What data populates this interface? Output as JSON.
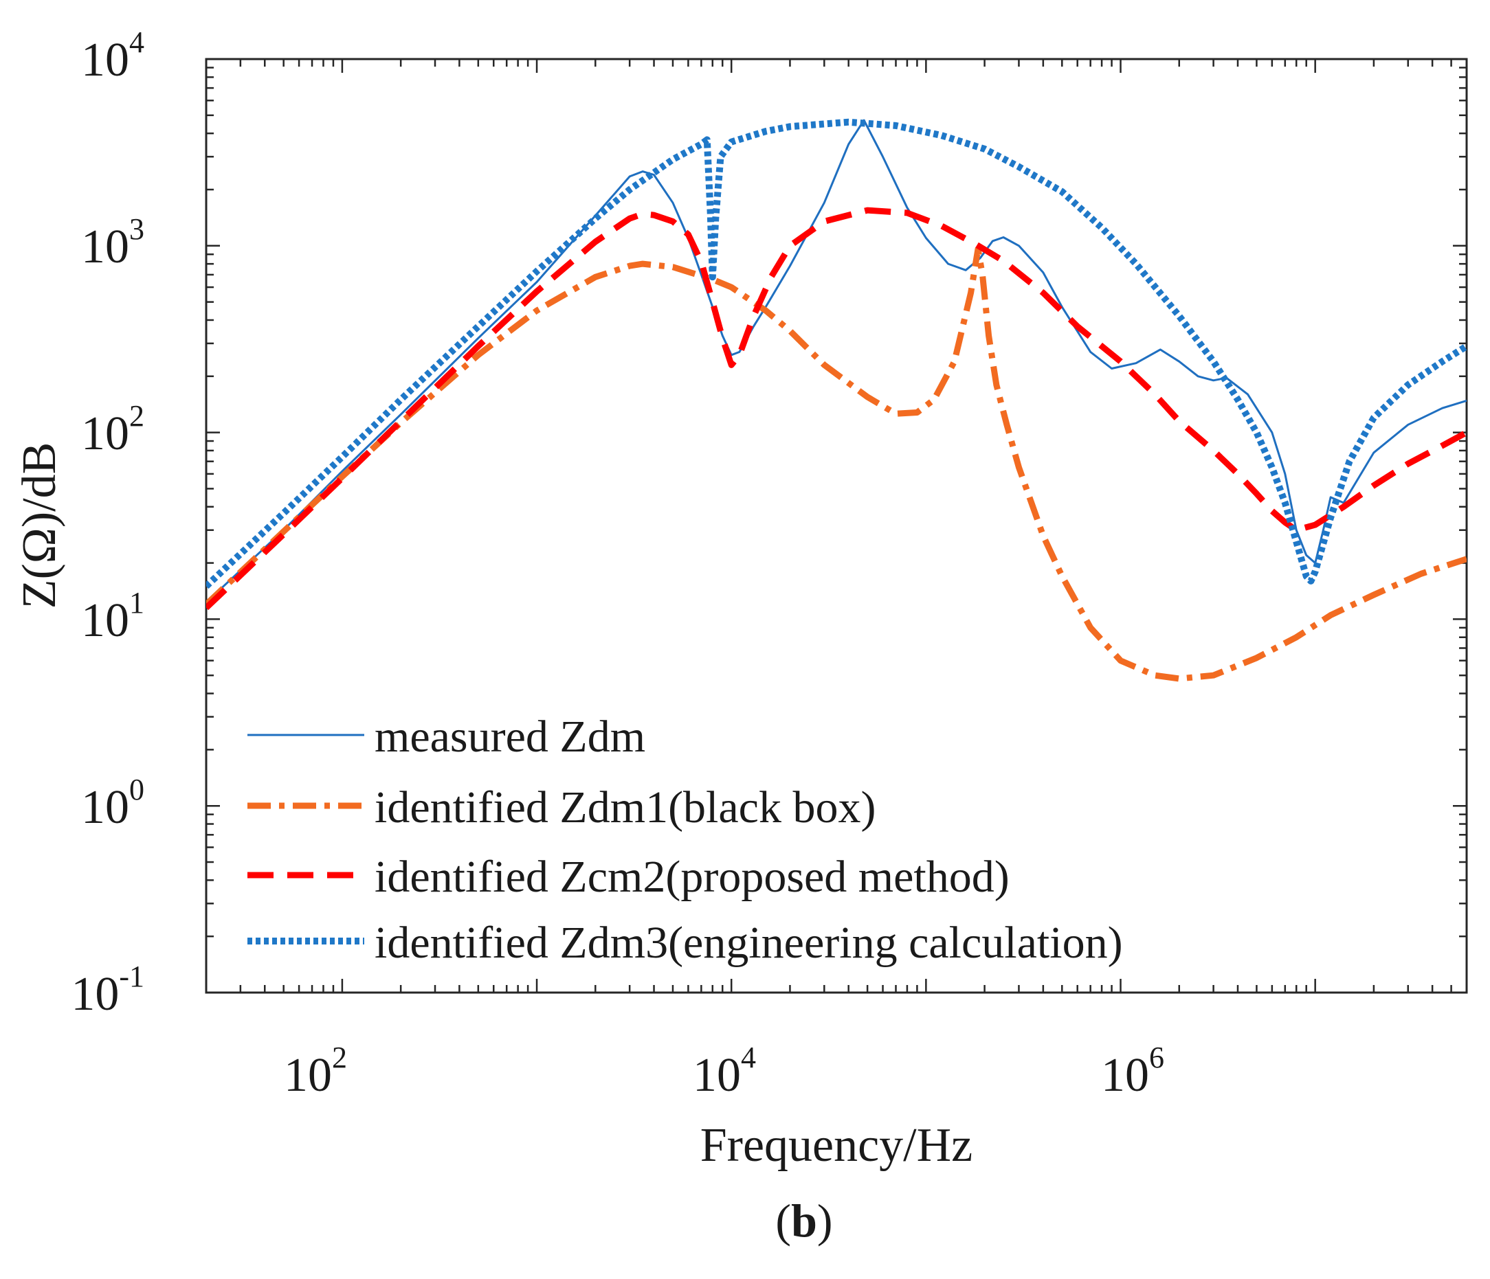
{
  "chart_data": {
    "type": "line",
    "scale": {
      "x": "log",
      "y": "log"
    },
    "xlim": [
      20,
      60000000
    ],
    "ylim": [
      0.1,
      10000
    ],
    "xlabel": "Frequency/Hz",
    "ylabel": "Z(Ω)/dB",
    "x_ticks": [
      {
        "value": 100,
        "base": "10",
        "exp": "2"
      },
      {
        "value": 10000,
        "base": "10",
        "exp": "4"
      },
      {
        "value": 1000000,
        "base": "10",
        "exp": "6"
      }
    ],
    "y_ticks": [
      {
        "value": 0.1,
        "base": "10",
        "exp": "-1"
      },
      {
        "value": 1,
        "base": "10",
        "exp": "0"
      },
      {
        "value": 10,
        "base": "10",
        "exp": "1"
      },
      {
        "value": 100,
        "base": "10",
        "exp": "2"
      },
      {
        "value": 1000,
        "base": "10",
        "exp": "3"
      },
      {
        "value": 10000,
        "base": "10",
        "exp": "4"
      }
    ],
    "legend_position": "bottom-left",
    "series": [
      {
        "name": "measured Zdm",
        "color": "#1f6fc0",
        "style": "solid",
        "points": [
          [
            20,
            12.3
          ],
          [
            50,
            30
          ],
          [
            100,
            62
          ],
          [
            200,
            125
          ],
          [
            500,
            320
          ],
          [
            1000,
            640
          ],
          [
            2000,
            1450
          ],
          [
            3000,
            2350
          ],
          [
            3500,
            2500
          ],
          [
            4000,
            2400
          ],
          [
            5000,
            1700
          ],
          [
            6000,
            1100
          ],
          [
            7000,
            700
          ],
          [
            8000,
            470
          ],
          [
            9000,
            330
          ],
          [
            10000,
            260
          ],
          [
            11000,
            270
          ],
          [
            13000,
            370
          ],
          [
            15000,
            470
          ],
          [
            20000,
            780
          ],
          [
            30000,
            1700
          ],
          [
            40000,
            3500
          ],
          [
            48000,
            4700
          ],
          [
            60000,
            3000
          ],
          [
            80000,
            1600
          ],
          [
            100000,
            1100
          ],
          [
            130000,
            800
          ],
          [
            160000,
            740
          ],
          [
            190000,
            860
          ],
          [
            220000,
            1060
          ],
          [
            250000,
            1110
          ],
          [
            300000,
            1000
          ],
          [
            400000,
            720
          ],
          [
            500000,
            470
          ],
          [
            700000,
            270
          ],
          [
            900000,
            220
          ],
          [
            1200000,
            235
          ],
          [
            1600000,
            278
          ],
          [
            2000000,
            240
          ],
          [
            2500000,
            200
          ],
          [
            3000000,
            190
          ],
          [
            3500000,
            196
          ],
          [
            4500000,
            160
          ],
          [
            6000000,
            100
          ],
          [
            7000000,
            60
          ],
          [
            8000000,
            30
          ],
          [
            9000000,
            22
          ],
          [
            10000000,
            20
          ],
          [
            11000000,
            30
          ],
          [
            12000000,
            45
          ],
          [
            14000000,
            42
          ],
          [
            20000000,
            78
          ],
          [
            30000000,
            110
          ],
          [
            45000000,
            135
          ],
          [
            60000000,
            148
          ]
        ]
      },
      {
        "name": "identified Zdm1(black box)",
        "color": "#f26b21",
        "style": "dashdot",
        "points": [
          [
            20,
            12
          ],
          [
            50,
            29.5
          ],
          [
            100,
            58
          ],
          [
            200,
            113
          ],
          [
            500,
            260
          ],
          [
            1000,
            450
          ],
          [
            2000,
            680
          ],
          [
            3000,
            780
          ],
          [
            3500,
            800
          ],
          [
            5000,
            770
          ],
          [
            8000,
            660
          ],
          [
            10000,
            600
          ],
          [
            15000,
            450
          ],
          [
            20000,
            350
          ],
          [
            30000,
            230
          ],
          [
            50000,
            155
          ],
          [
            70000,
            126
          ],
          [
            90000,
            128
          ],
          [
            110000,
            150
          ],
          [
            140000,
            240
          ],
          [
            170000,
            560
          ],
          [
            185000,
            960
          ],
          [
            195000,
            700
          ],
          [
            210000,
            330
          ],
          [
            230000,
            180
          ],
          [
            260000,
            110
          ],
          [
            300000,
            65
          ],
          [
            400000,
            28
          ],
          [
            500000,
            17
          ],
          [
            700000,
            9
          ],
          [
            1000000,
            6
          ],
          [
            1500000,
            5
          ],
          [
            2000000,
            4.8
          ],
          [
            3000000,
            5
          ],
          [
            5000000,
            6.2
          ],
          [
            8000000,
            8
          ],
          [
            12000000,
            10.5
          ],
          [
            20000000,
            13.5
          ],
          [
            35000000,
            17.5
          ],
          [
            60000000,
            21
          ]
        ]
      },
      {
        "name": "identified Zcm2(proposed method)",
        "color": "#ff0000",
        "style": "dashed",
        "points": [
          [
            20,
            11.5
          ],
          [
            50,
            28.5
          ],
          [
            100,
            57
          ],
          [
            200,
            115
          ],
          [
            500,
            290
          ],
          [
            1000,
            570
          ],
          [
            2000,
            1050
          ],
          [
            3000,
            1400
          ],
          [
            3500,
            1480
          ],
          [
            4000,
            1460
          ],
          [
            5000,
            1350
          ],
          [
            6000,
            1150
          ],
          [
            7000,
            820
          ],
          [
            8000,
            500
          ],
          [
            9000,
            320
          ],
          [
            10000,
            230
          ],
          [
            11000,
            260
          ],
          [
            13000,
            420
          ],
          [
            16000,
            680
          ],
          [
            20000,
            1000
          ],
          [
            30000,
            1350
          ],
          [
            50000,
            1550
          ],
          [
            80000,
            1500
          ],
          [
            120000,
            1280
          ],
          [
            180000,
            1020
          ],
          [
            250000,
            830
          ],
          [
            400000,
            560
          ],
          [
            600000,
            370
          ],
          [
            1000000,
            240
          ],
          [
            1500000,
            160
          ],
          [
            2000000,
            115
          ],
          [
            3000000,
            80
          ],
          [
            4000000,
            60
          ],
          [
            5000000,
            47
          ],
          [
            6000000,
            38
          ],
          [
            7000000,
            33
          ],
          [
            8000000,
            30
          ],
          [
            10000000,
            32
          ],
          [
            14000000,
            40
          ],
          [
            20000000,
            52
          ],
          [
            30000000,
            68
          ],
          [
            45000000,
            85
          ],
          [
            60000000,
            100
          ]
        ]
      },
      {
        "name": "identified Zdm3(engineering calculation)",
        "color": "#1f78c8",
        "style": "dotted",
        "points": [
          [
            20,
            15
          ],
          [
            50,
            37
          ],
          [
            100,
            74
          ],
          [
            200,
            150
          ],
          [
            500,
            370
          ],
          [
            1000,
            730
          ],
          [
            2000,
            1400
          ],
          [
            3000,
            2000
          ],
          [
            5000,
            2900
          ],
          [
            7000,
            3500
          ],
          [
            7500,
            3700
          ],
          [
            7800,
            1500
          ],
          [
            8000,
            680
          ],
          [
            8300,
            1400
          ],
          [
            8800,
            3000
          ],
          [
            10000,
            3600
          ],
          [
            15000,
            4100
          ],
          [
            20000,
            4350
          ],
          [
            40000,
            4600
          ],
          [
            70000,
            4400
          ],
          [
            120000,
            3900
          ],
          [
            200000,
            3300
          ],
          [
            300000,
            2650
          ],
          [
            500000,
            1950
          ],
          [
            800000,
            1250
          ],
          [
            1200000,
            800
          ],
          [
            2000000,
            420
          ],
          [
            3000000,
            240
          ],
          [
            4000000,
            150
          ],
          [
            5000000,
            100
          ],
          [
            6000000,
            65
          ],
          [
            7000000,
            42
          ],
          [
            8000000,
            26
          ],
          [
            9000000,
            17
          ],
          [
            9500000,
            16
          ],
          [
            10000000,
            18
          ],
          [
            12000000,
            35
          ],
          [
            15000000,
            70
          ],
          [
            20000000,
            120
          ],
          [
            30000000,
            180
          ],
          [
            45000000,
            240
          ],
          [
            60000000,
            290
          ]
        ]
      }
    ]
  },
  "caption": {
    "open": "(",
    "letter": "b",
    "close": ")"
  }
}
